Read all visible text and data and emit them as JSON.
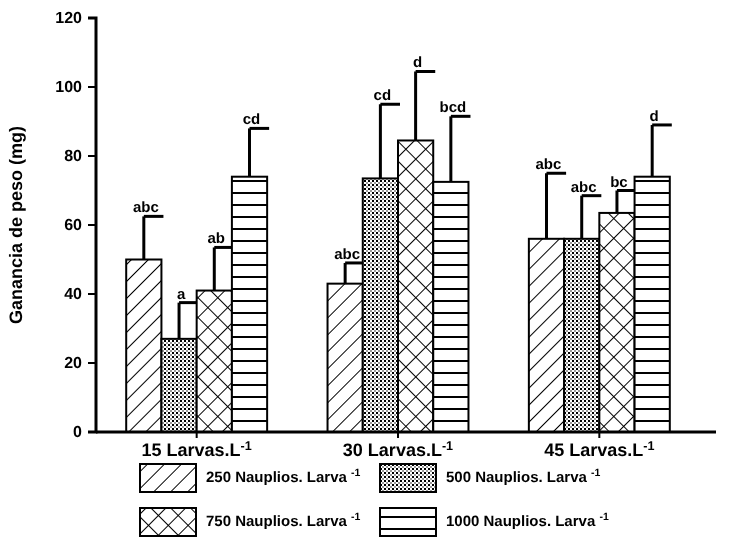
{
  "chart_data": {
    "type": "bar",
    "ylabel": "Ganancia de peso (mg)",
    "categories": [
      "15 Larvas.L$^{-1}$",
      "30 Larvas.L$^{-1}$",
      "45 Larvas.L$^{-1}$"
    ],
    "annotations": [
      "abc",
      "a",
      "ab",
      "cd",
      "abc",
      "cd",
      "d",
      "bcd",
      "abc",
      "abc",
      "bc",
      "d"
    ],
    "ylim": [
      0,
      120
    ],
    "yticks": [
      0,
      20,
      40,
      60,
      80,
      100,
      120
    ],
    "grid": false,
    "legend": "bottom",
    "series": [
      {
        "name": "250 Nauplios. Larva $^{-1}$",
        "color": "#000000",
        "values": [
          50,
          43,
          56
        ],
        "errors": [
          [
            50,
            62.5
          ],
          [
            43,
            49
          ],
          [
            56,
            75
          ]
        ]
      },
      {
        "name": "500 Nauplios. Larva $^{-1}$",
        "color": "#000000",
        "values": [
          27,
          73.5,
          56
        ],
        "errors": [
          [
            27,
            37.5
          ],
          [
            73.5,
            95
          ],
          [
            56,
            68.5
          ]
        ]
      },
      {
        "name": "750 Nauplios. Larva $^{-1}$",
        "color": "#000000",
        "values": [
          41,
          84.5,
          63.5
        ],
        "errors": [
          [
            41,
            53.5
          ],
          [
            84.5,
            104.5
          ],
          [
            63.5,
            70
          ]
        ]
      },
      {
        "name": "1000 Nauplios. Larva $^{-1}$",
        "color": "#000000",
        "values": [
          74,
          72.5,
          74
        ],
        "errors": [
          [
            74,
            88
          ],
          [
            72.5,
            91.5
          ],
          [
            74,
            89
          ]
        ]
      }
    ]
  }
}
